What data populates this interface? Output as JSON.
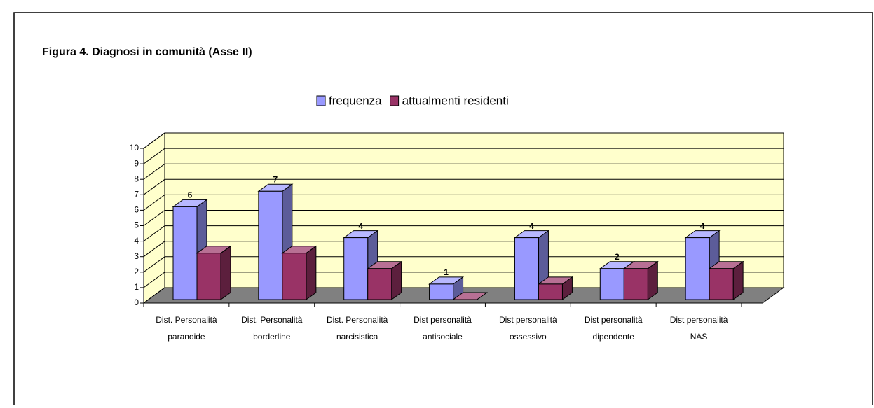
{
  "chart_data": {
    "type": "bar3d",
    "title": "Figura 4. Diagnosi in comunità (Asse II)",
    "categories": [
      "Dist. Personalità paranoide",
      "Dist. Personalità borderline",
      "Dist. Personalità narcisistica",
      "Dist personalità antisociale",
      "Dist personalità ossessivo",
      "Dist personalità dipendente",
      "Dist personalità NAS"
    ],
    "series": [
      {
        "name": "frequenza",
        "color": "#9999ff",
        "values": [
          6,
          7,
          4,
          1,
          4,
          2,
          4
        ]
      },
      {
        "name": "attualmenti residenti",
        "color": "#993366",
        "values": [
          3,
          3,
          2,
          0,
          1,
          2,
          2
        ]
      }
    ],
    "ylim": [
      0,
      10
    ],
    "yticks": [
      0,
      1,
      2,
      3,
      4,
      5,
      6,
      7,
      8,
      9,
      10
    ],
    "grid": true,
    "legend": "top"
  }
}
